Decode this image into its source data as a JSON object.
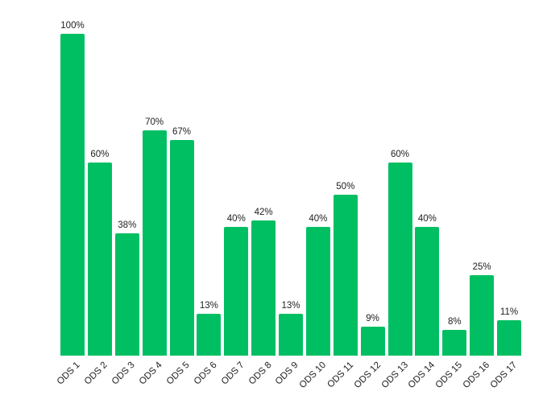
{
  "chart_data": {
    "type": "bar",
    "title": "",
    "xlabel": "",
    "ylabel": "",
    "ylim": [
      0,
      100
    ],
    "grid": false,
    "legend": false,
    "orientation": "vertical",
    "categories": [
      "ODS 1",
      "ODS 2",
      "ODS 3",
      "ODS 4",
      "ODS 5",
      "ODS 6",
      "ODS 7",
      "ODS 8",
      "ODS 9",
      "ODS 10",
      "ODS 11",
      "ODS 12",
      "ODS 13",
      "ODS 14",
      "ODS 15",
      "ODS 16",
      "ODS 17"
    ],
    "values": [
      100,
      60,
      38,
      70,
      67,
      13,
      40,
      42,
      13,
      40,
      50,
      9,
      60,
      40,
      8,
      25,
      11
    ],
    "value_labels": [
      "100%",
      "60%",
      "38%",
      "70%",
      "67%",
      "13%",
      "40%",
      "42%",
      "13%",
      "40%",
      "50%",
      "9%",
      "60%",
      "40%",
      "8%",
      "25%",
      "11%"
    ],
    "bar_color": "#00bf63",
    "label_color": "#212121",
    "background_color": "#ffffff",
    "x_label_rotation_deg": -45
  }
}
